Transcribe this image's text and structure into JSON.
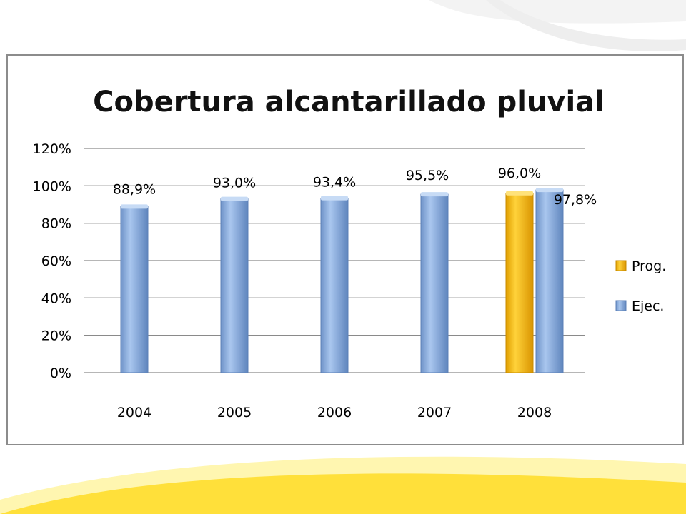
{
  "colors": {
    "ejec": "#8fb2e0",
    "ejec_dark": "#5d82b8",
    "prog": "#f6b800",
    "prog_dark": "#c98c00",
    "grid": "#8a8a8a",
    "swoosh": "#ffe03a",
    "swoosh_light": "#fff6b0"
  },
  "chart_data": {
    "type": "bar",
    "title": "Cobertura alcantarillado pluvial",
    "categories": [
      "2004",
      "2005",
      "2006",
      "2007",
      "2008"
    ],
    "y_ticks": [
      "0%",
      "20%",
      "40%",
      "60%",
      "80%",
      "100%",
      "120%"
    ],
    "ylim": [
      0,
      120
    ],
    "grid": true,
    "legend_position": "right",
    "series": [
      {
        "name": "Prog.",
        "values": [
          null,
          null,
          null,
          null,
          96.0
        ],
        "labels": [
          "",
          "",
          "",
          "",
          "96,0%"
        ]
      },
      {
        "name": "Ejec.",
        "values": [
          88.9,
          93.0,
          93.4,
          95.5,
          97.8
        ],
        "labels": [
          "88,9%",
          "93,0%",
          "93,4%",
          "95,5%",
          "97,8%"
        ]
      }
    ]
  }
}
